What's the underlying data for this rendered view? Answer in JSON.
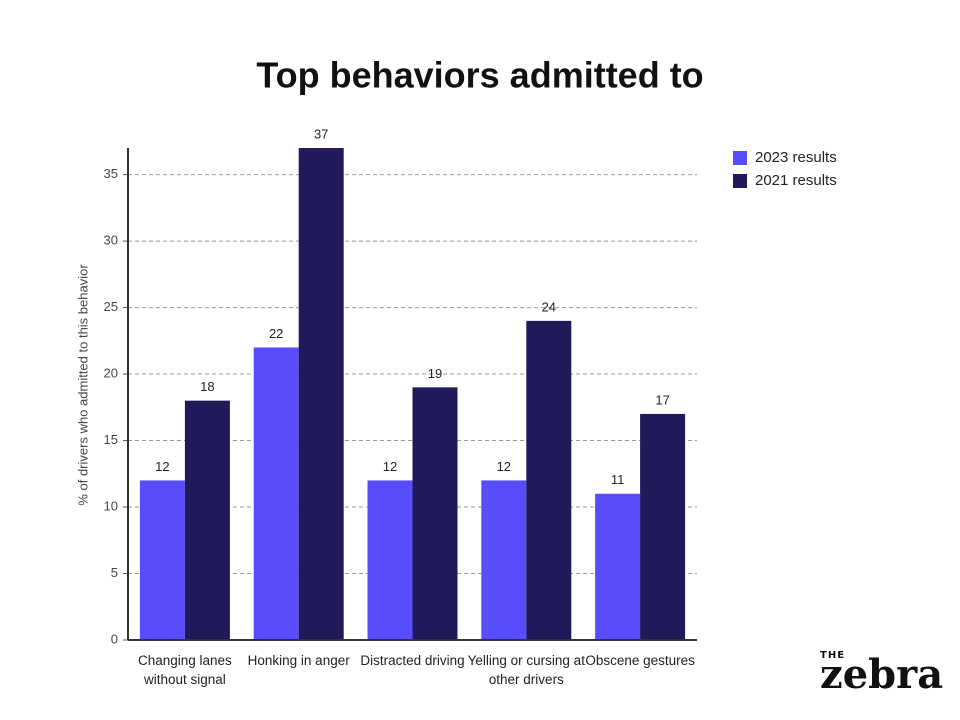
{
  "chart_data": {
    "type": "bar",
    "title": "Top behaviors admitted to",
    "y_label": "% of drivers who admitted to this behavior",
    "categories": [
      "Changing lanes without signal",
      "Honking in anger",
      "Distracted driving",
      "Yelling or cursing at other drivers",
      "Obscene gestures"
    ],
    "series": [
      {
        "name": "2023 results",
        "color": "#574dfc",
        "values": [
          12,
          22,
          12,
          12,
          11
        ]
      },
      {
        "name": "2021 results",
        "color": "#201a5a",
        "values": [
          18,
          37,
          19,
          24,
          17
        ]
      }
    ],
    "ylim": [
      0,
      37
    ],
    "yticks": [
      0,
      5,
      10,
      15,
      20,
      25,
      30,
      35
    ],
    "grid": true,
    "legend": "right"
  },
  "logo": {
    "top": "THE",
    "bottom": "zebra"
  }
}
